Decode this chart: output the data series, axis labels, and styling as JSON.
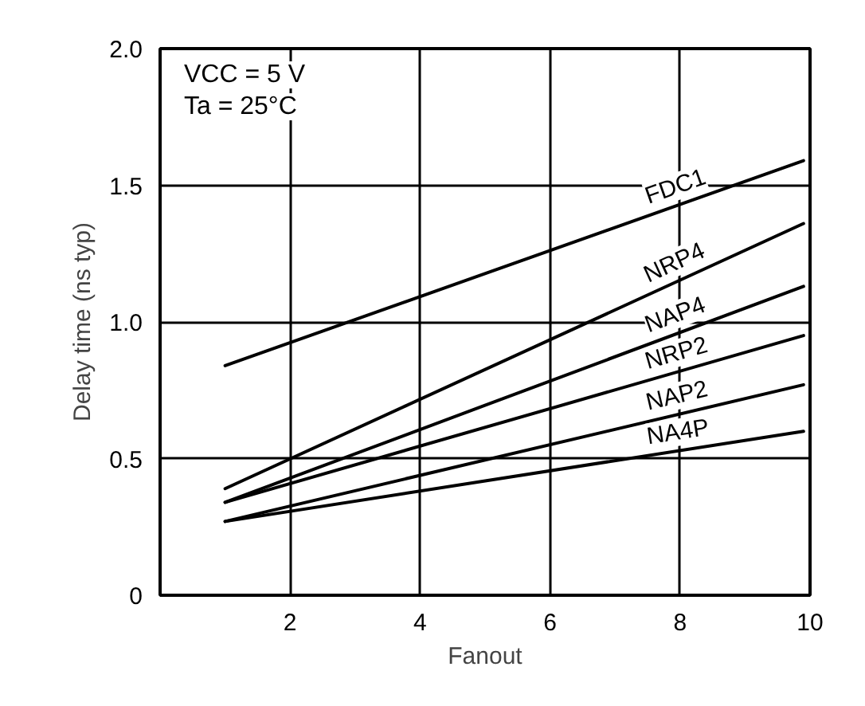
{
  "chart_data": {
    "type": "line",
    "xlabel": "Fanout",
    "ylabel": "Delay time (ns typ)",
    "xlim": [
      0,
      10
    ],
    "ylim": [
      0,
      2.0
    ],
    "xticks": [
      2,
      4,
      6,
      8,
      10
    ],
    "yticks": [
      0,
      {
        "value": 0.5,
        "label": "0.5"
      },
      {
        "value": 1.0,
        "label": "1.0"
      },
      {
        "value": 1.5,
        "label": "1.5"
      },
      {
        "value": 2.0,
        "label": "2.0"
      }
    ],
    "grid": true,
    "line_style": "solid",
    "x": [
      1,
      9.9
    ],
    "series": [
      {
        "name": "FDC1",
        "color": "#000000",
        "values": [
          0.84,
          1.59
        ]
      },
      {
        "name": "NRP4",
        "color": "#000000",
        "values": [
          0.39,
          1.36
        ]
      },
      {
        "name": "NAP4",
        "color": "#000000",
        "values": [
          0.34,
          1.13
        ]
      },
      {
        "name": "NRP2",
        "color": "#000000",
        "values": [
          0.34,
          0.95
        ]
      },
      {
        "name": "NAP2",
        "color": "#000000",
        "values": [
          0.27,
          0.77
        ]
      },
      {
        "name": "NA4P",
        "color": "#000000",
        "values": [
          0.27,
          0.6
        ]
      }
    ],
    "annotations": [
      "VCC = 5 V",
      "Ta = 25°C"
    ]
  }
}
